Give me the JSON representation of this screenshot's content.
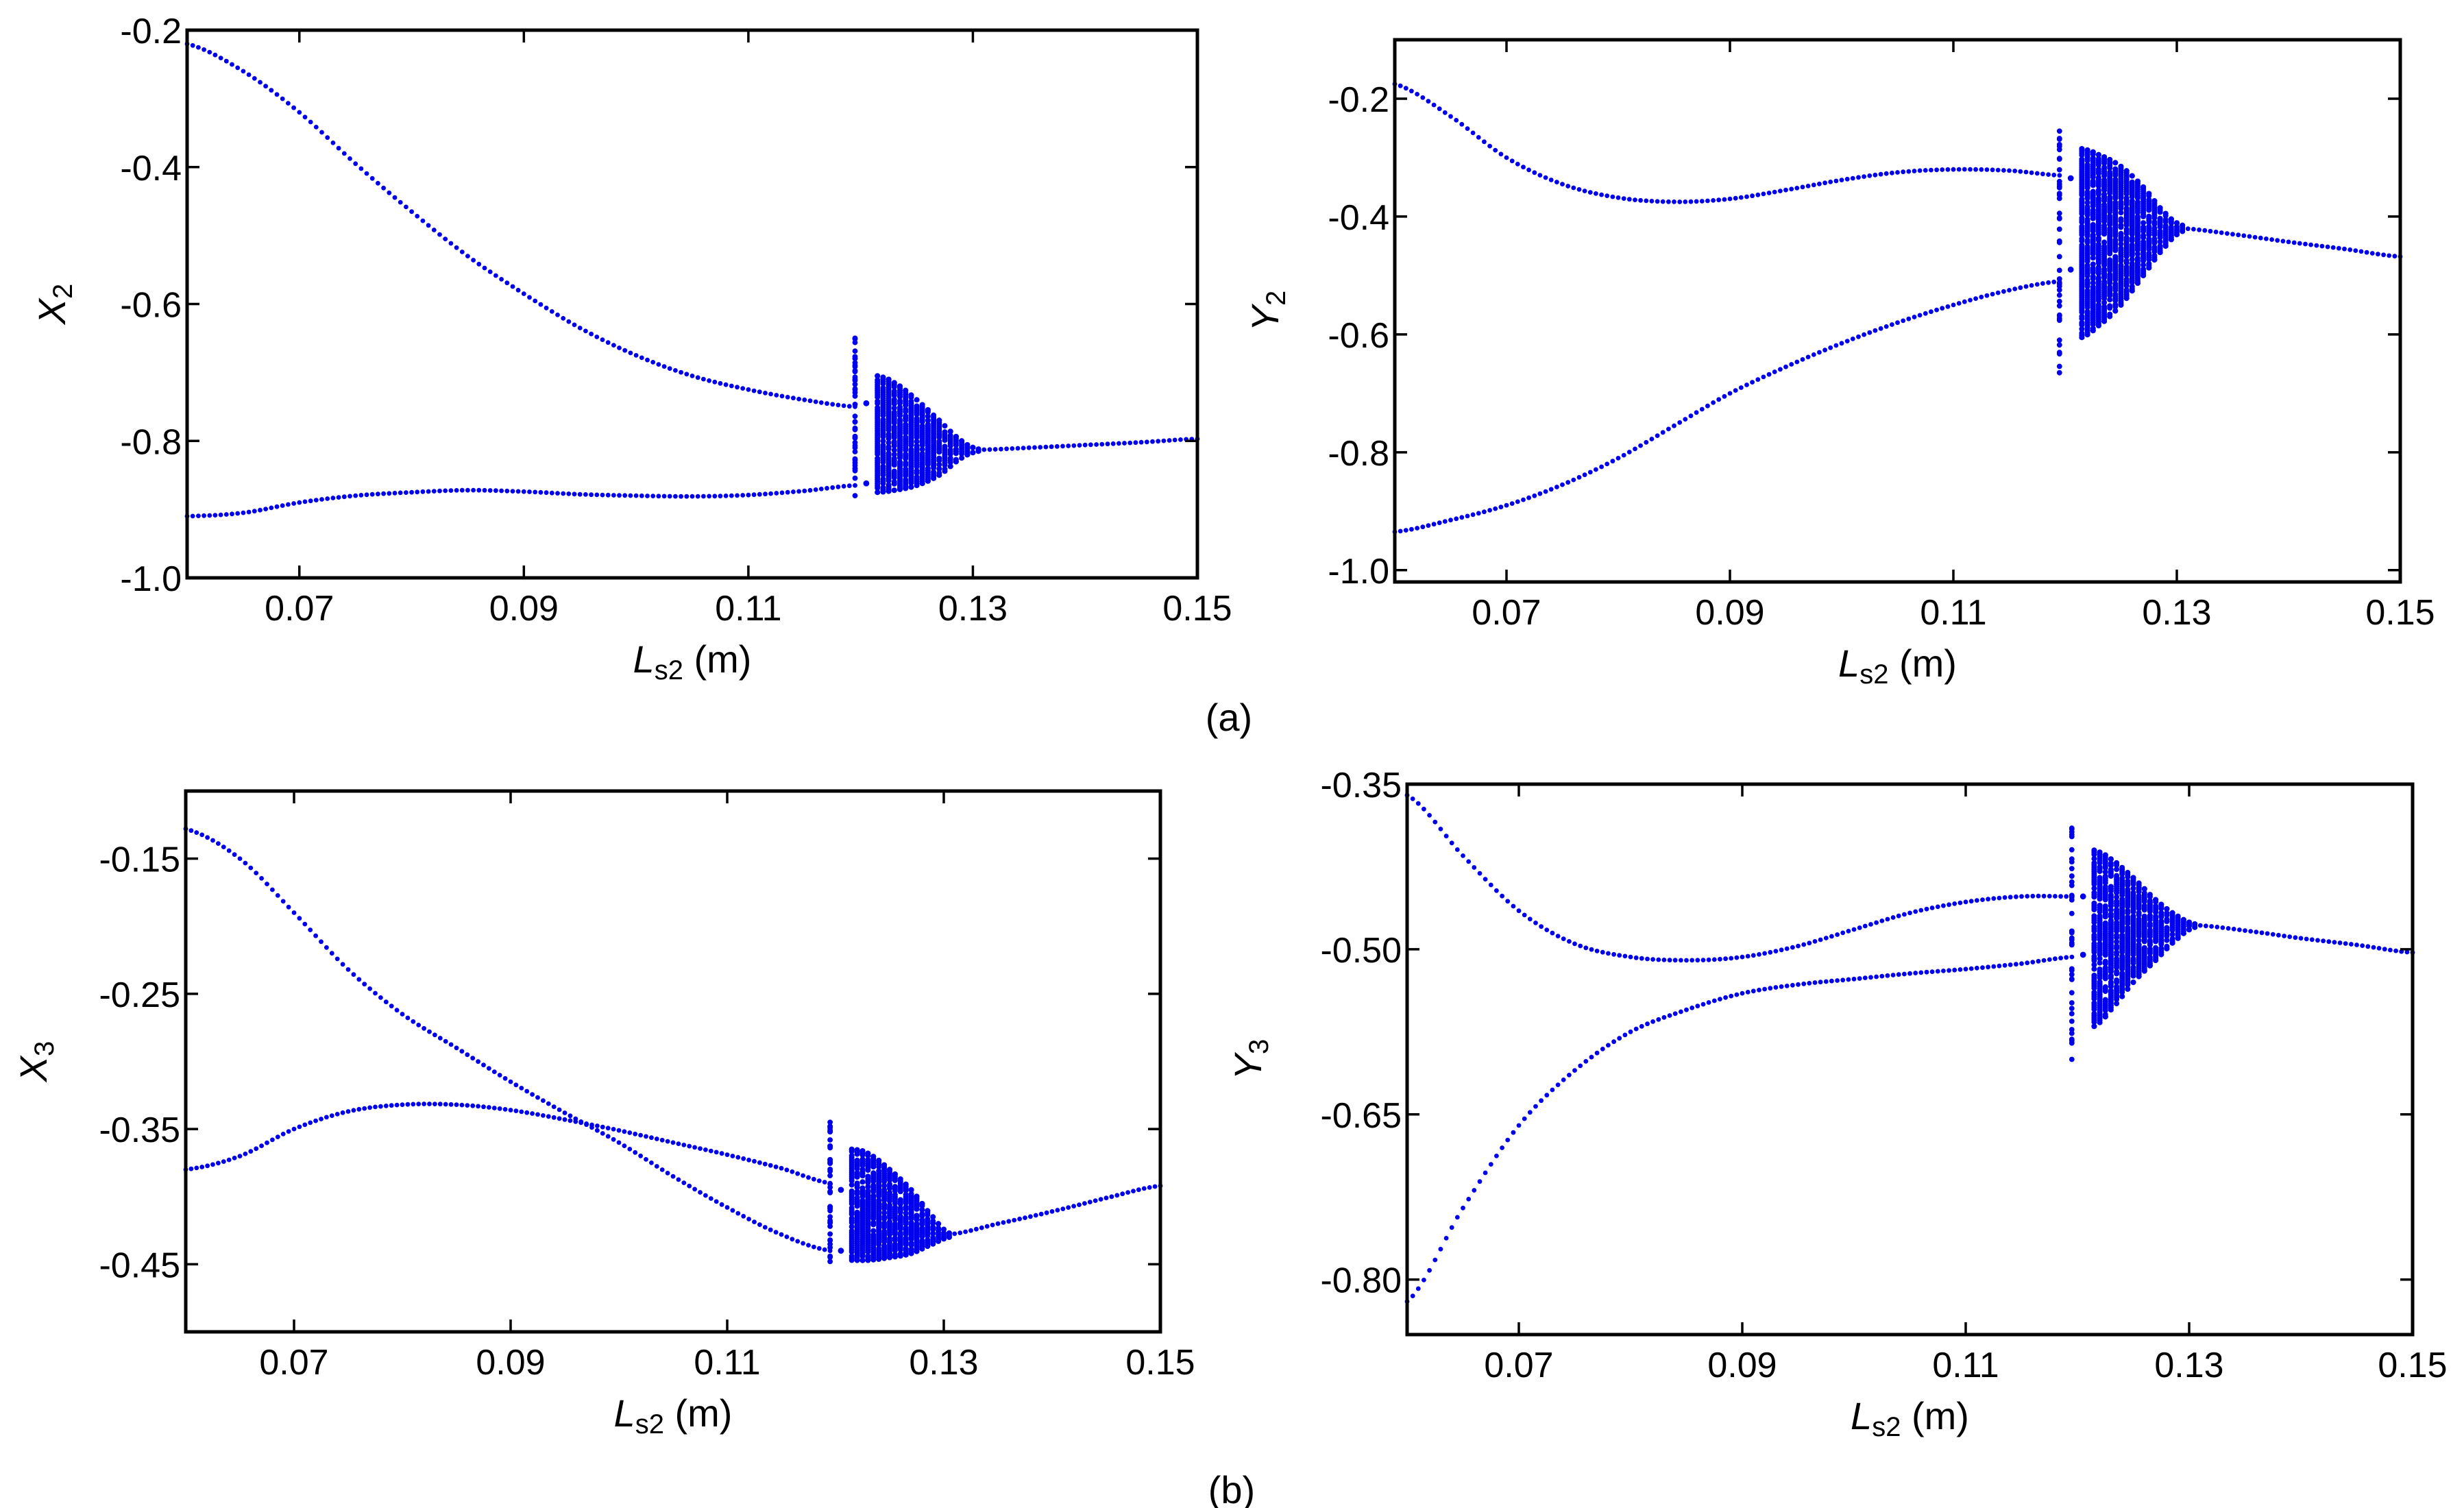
{
  "figure_labels": {
    "a": "(a)",
    "b": "(b)"
  },
  "colors": {
    "points": "#0000ee",
    "axes": "#000000",
    "background": "#ffffff"
  },
  "chart_data": [
    {
      "id": "X2",
      "type": "scatter",
      "title": "",
      "xlabel": {
        "main": "L",
        "sub": "s2",
        "unit": " (m)"
      },
      "ylabel": {
        "main": "X",
        "sub": "2"
      },
      "xlim": [
        0.06,
        0.15
      ],
      "ylim": [
        -1.0,
        -0.2
      ],
      "xticks": [
        0.07,
        0.09,
        0.11,
        0.13,
        0.15
      ],
      "xtick_labels": [
        "0.07",
        "0.09",
        "0.11",
        "0.13",
        "0.15"
      ],
      "yticks": [
        -0.2,
        -0.4,
        -0.6,
        -0.8,
        -1.0
      ],
      "ytick_labels": [
        "-0.2",
        "-0.4",
        "-0.6",
        "-0.8",
        "-1.0"
      ],
      "grid": false,
      "group": "a",
      "periodic_branches": [
        [
          [
            0.06,
            -0.22
          ],
          [
            0.065,
            -0.26
          ],
          [
            0.07,
            -0.32
          ],
          [
            0.075,
            -0.395
          ],
          [
            0.08,
            -0.465
          ],
          [
            0.085,
            -0.53
          ],
          [
            0.09,
            -0.585
          ],
          [
            0.095,
            -0.635
          ],
          [
            0.1,
            -0.675
          ],
          [
            0.105,
            -0.705
          ],
          [
            0.11,
            -0.725
          ],
          [
            0.115,
            -0.74
          ],
          [
            0.1195,
            -0.75
          ]
        ],
        [
          [
            0.06,
            -0.91
          ],
          [
            0.065,
            -0.905
          ],
          [
            0.07,
            -0.89
          ],
          [
            0.075,
            -0.88
          ],
          [
            0.08,
            -0.875
          ],
          [
            0.085,
            -0.872
          ],
          [
            0.09,
            -0.874
          ],
          [
            0.095,
            -0.878
          ],
          [
            0.1,
            -0.88
          ],
          [
            0.105,
            -0.881
          ],
          [
            0.11,
            -0.879
          ],
          [
            0.115,
            -0.873
          ],
          [
            0.1195,
            -0.865
          ]
        ]
      ],
      "window_points": [
        [
          0.1205,
          -0.745
        ],
        [
          0.1205,
          -0.862
        ]
      ],
      "isolated_column": {
        "x": 0.1195,
        "ymin": -0.88,
        "ymax": -0.65
      },
      "chaotic_band": [
        [
          0.1215,
          -0.705,
          -0.875
        ],
        [
          0.123,
          -0.715,
          -0.872
        ],
        [
          0.125,
          -0.74,
          -0.865
        ],
        [
          0.127,
          -0.77,
          -0.85
        ],
        [
          0.129,
          -0.8,
          -0.825
        ],
        [
          0.1305,
          -0.812,
          -0.815
        ]
      ],
      "single_branch": [
        [
          0.1305,
          -0.813
        ],
        [
          0.135,
          -0.81
        ],
        [
          0.14,
          -0.806
        ],
        [
          0.145,
          -0.802
        ],
        [
          0.15,
          -0.797
        ]
      ]
    },
    {
      "id": "Y2",
      "type": "scatter",
      "title": "",
      "xlabel": {
        "main": "L",
        "sub": "s2",
        "unit": " (m)"
      },
      "ylabel": {
        "main": "Y",
        "sub": "2"
      },
      "xlim": [
        0.06,
        0.15
      ],
      "ylim": [
        -1.02,
        -0.1
      ],
      "xticks": [
        0.07,
        0.09,
        0.11,
        0.13,
        0.15
      ],
      "xtick_labels": [
        "0.07",
        "0.09",
        "0.11",
        "0.13",
        "0.15"
      ],
      "yticks": [
        -0.2,
        -0.4,
        -0.6,
        -0.8,
        -1.0
      ],
      "ytick_labels": [
        "-0.2",
        "-0.4",
        "-0.6",
        "-0.8",
        "-1.0"
      ],
      "grid": false,
      "group": "a",
      "periodic_branches": [
        [
          [
            0.06,
            -0.175
          ],
          [
            0.065,
            -0.23
          ],
          [
            0.07,
            -0.3
          ],
          [
            0.075,
            -0.345
          ],
          [
            0.08,
            -0.368
          ],
          [
            0.085,
            -0.375
          ],
          [
            0.09,
            -0.37
          ],
          [
            0.095,
            -0.355
          ],
          [
            0.1,
            -0.338
          ],
          [
            0.105,
            -0.325
          ],
          [
            0.11,
            -0.32
          ],
          [
            0.115,
            -0.322
          ],
          [
            0.1195,
            -0.33
          ]
        ],
        [
          [
            0.06,
            -0.935
          ],
          [
            0.065,
            -0.915
          ],
          [
            0.07,
            -0.89
          ],
          [
            0.075,
            -0.855
          ],
          [
            0.08,
            -0.81
          ],
          [
            0.085,
            -0.755
          ],
          [
            0.09,
            -0.7
          ],
          [
            0.095,
            -0.655
          ],
          [
            0.1,
            -0.615
          ],
          [
            0.105,
            -0.58
          ],
          [
            0.11,
            -0.55
          ],
          [
            0.115,
            -0.525
          ],
          [
            0.1195,
            -0.51
          ]
        ]
      ],
      "window_points": [
        [
          0.1205,
          -0.335
        ],
        [
          0.1205,
          -0.49
        ]
      ],
      "isolated_column": {
        "x": 0.1195,
        "ymin": -0.665,
        "ymax": -0.255
      },
      "chaotic_band": [
        [
          0.1215,
          -0.285,
          -0.605
        ],
        [
          0.123,
          -0.295,
          -0.585
        ],
        [
          0.125,
          -0.315,
          -0.55
        ],
        [
          0.127,
          -0.35,
          -0.5
        ],
        [
          0.129,
          -0.395,
          -0.45
        ],
        [
          0.1305,
          -0.415,
          -0.425
        ]
      ],
      "single_branch": [
        [
          0.1305,
          -0.42
        ],
        [
          0.135,
          -0.43
        ],
        [
          0.14,
          -0.443
        ],
        [
          0.145,
          -0.455
        ],
        [
          0.15,
          -0.468
        ]
      ]
    },
    {
      "id": "X3",
      "type": "scatter",
      "title": "",
      "xlabel": {
        "main": "L",
        "sub": "s2",
        "unit": " (m)"
      },
      "ylabel": {
        "main": "X",
        "sub": "3"
      },
      "xlim": [
        0.06,
        0.15
      ],
      "ylim": [
        -0.5,
        -0.1
      ],
      "xticks": [
        0.07,
        0.09,
        0.11,
        0.13,
        0.15
      ],
      "xtick_labels": [
        "0.07",
        "0.09",
        "0.11",
        "0.13",
        "0.15"
      ],
      "yticks": [
        -0.15,
        -0.25,
        -0.35,
        -0.45
      ],
      "ytick_labels": [
        "-0.15",
        "-0.25",
        "-0.35",
        "-0.45"
      ],
      "grid": false,
      "group": "b",
      "periodic_branches": [
        [
          [
            0.06,
            -0.128
          ],
          [
            0.065,
            -0.15
          ],
          [
            0.07,
            -0.19
          ],
          [
            0.075,
            -0.232
          ],
          [
            0.08,
            -0.265
          ],
          [
            0.085,
            -0.29
          ],
          [
            0.09,
            -0.315
          ],
          [
            0.095,
            -0.338
          ],
          [
            0.1,
            -0.36
          ],
          [
            0.105,
            -0.385
          ],
          [
            0.11,
            -0.408
          ],
          [
            0.115,
            -0.428
          ],
          [
            0.1195,
            -0.44
          ]
        ],
        [
          [
            0.06,
            -0.38
          ],
          [
            0.065,
            -0.37
          ],
          [
            0.07,
            -0.35
          ],
          [
            0.075,
            -0.337
          ],
          [
            0.08,
            -0.332
          ],
          [
            0.085,
            -0.332
          ],
          [
            0.09,
            -0.336
          ],
          [
            0.095,
            -0.343
          ],
          [
            0.1,
            -0.351
          ],
          [
            0.105,
            -0.36
          ],
          [
            0.11,
            -0.369
          ],
          [
            0.115,
            -0.379
          ],
          [
            0.1195,
            -0.39
          ]
        ]
      ],
      "window_points": [
        [
          0.1205,
          -0.395
        ],
        [
          0.1205,
          -0.44
        ]
      ],
      "isolated_column": {
        "x": 0.1195,
        "ymin": -0.448,
        "ymax": -0.345
      },
      "chaotic_band": [
        [
          0.1215,
          -0.365,
          -0.447
        ],
        [
          0.123,
          -0.368,
          -0.447
        ],
        [
          0.125,
          -0.38,
          -0.445
        ],
        [
          0.127,
          -0.395,
          -0.442
        ],
        [
          0.129,
          -0.415,
          -0.435
        ],
        [
          0.1305,
          -0.427,
          -0.43
        ]
      ],
      "single_branch": [
        [
          0.1305,
          -0.428
        ],
        [
          0.135,
          -0.42
        ],
        [
          0.14,
          -0.411
        ],
        [
          0.145,
          -0.401
        ],
        [
          0.15,
          -0.392
        ]
      ]
    },
    {
      "id": "Y3",
      "type": "scatter",
      "title": "",
      "xlabel": {
        "main": "L",
        "sub": "s2",
        "unit": " (m)"
      },
      "ylabel": {
        "main": "Y",
        "sub": "3"
      },
      "xlim": [
        0.06,
        0.15
      ],
      "ylim": [
        -0.85,
        -0.35
      ],
      "xticks": [
        0.07,
        0.09,
        0.11,
        0.13,
        0.15
      ],
      "xtick_labels": [
        "0.07",
        "0.09",
        "0.11",
        "0.13",
        "0.15"
      ],
      "yticks": [
        -0.35,
        -0.5,
        -0.65,
        -0.8
      ],
      "ytick_labels": [
        "-0.35",
        "-0.50",
        "-0.65",
        "-0.80"
      ],
      "grid": false,
      "group": "b",
      "periodic_branches": [
        [
          [
            0.06,
            -0.36
          ],
          [
            0.065,
            -0.415
          ],
          [
            0.07,
            -0.465
          ],
          [
            0.075,
            -0.495
          ],
          [
            0.08,
            -0.507
          ],
          [
            0.085,
            -0.51
          ],
          [
            0.09,
            -0.507
          ],
          [
            0.095,
            -0.497
          ],
          [
            0.1,
            -0.482
          ],
          [
            0.105,
            -0.467
          ],
          [
            0.11,
            -0.457
          ],
          [
            0.115,
            -0.452
          ],
          [
            0.1195,
            -0.452
          ]
        ],
        [
          [
            0.06,
            -0.82
          ],
          [
            0.065,
            -0.735
          ],
          [
            0.07,
            -0.66
          ],
          [
            0.075,
            -0.61
          ],
          [
            0.08,
            -0.575
          ],
          [
            0.085,
            -0.555
          ],
          [
            0.09,
            -0.54
          ],
          [
            0.095,
            -0.532
          ],
          [
            0.1,
            -0.527
          ],
          [
            0.105,
            -0.522
          ],
          [
            0.11,
            -0.518
          ],
          [
            0.115,
            -0.513
          ],
          [
            0.1195,
            -0.507
          ]
        ]
      ],
      "window_points": [
        [
          0.1205,
          -0.452
        ],
        [
          0.1205,
          -0.505
        ]
      ],
      "isolated_column": {
        "x": 0.1195,
        "ymin": -0.6,
        "ymax": -0.39
      },
      "chaotic_band": [
        [
          0.1215,
          -0.41,
          -0.57
        ],
        [
          0.123,
          -0.418,
          -0.555
        ],
        [
          0.125,
          -0.435,
          -0.53
        ],
        [
          0.127,
          -0.455,
          -0.51
        ],
        [
          0.129,
          -0.47,
          -0.49
        ],
        [
          0.1305,
          -0.477,
          -0.48
        ]
      ],
      "single_branch": [
        [
          0.1305,
          -0.478
        ],
        [
          0.135,
          -0.483
        ],
        [
          0.14,
          -0.49
        ],
        [
          0.145,
          -0.496
        ],
        [
          0.15,
          -0.503
        ]
      ]
    }
  ]
}
